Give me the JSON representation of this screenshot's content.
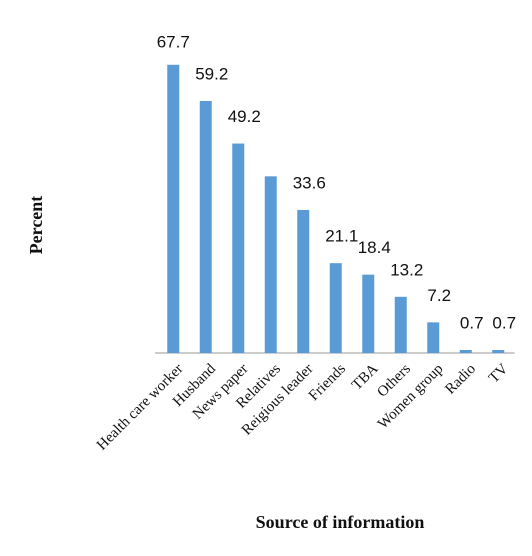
{
  "chart_data": {
    "type": "bar",
    "x_label": "Source of information",
    "y_label": "Percent",
    "categories": [
      "Health care worker",
      "Husband",
      "News paper",
      "Relatives",
      "Reigious leader",
      "Friends",
      "TBA",
      "Others",
      "Women group",
      "Radio",
      "TV"
    ],
    "values": [
      67.7,
      59.2,
      49.2,
      41.5,
      33.6,
      21.1,
      18.4,
      13.2,
      7.2,
      0.7,
      0.7
    ],
    "value_labels": [
      "67.7",
      "59.2",
      "49.2",
      null,
      "33.6",
      "21.1",
      "18.4",
      "13.2",
      "7.2",
      "0.7",
      "0.7"
    ],
    "color": "#5b9bd5",
    "ylim": [
      0,
      70
    ]
  }
}
